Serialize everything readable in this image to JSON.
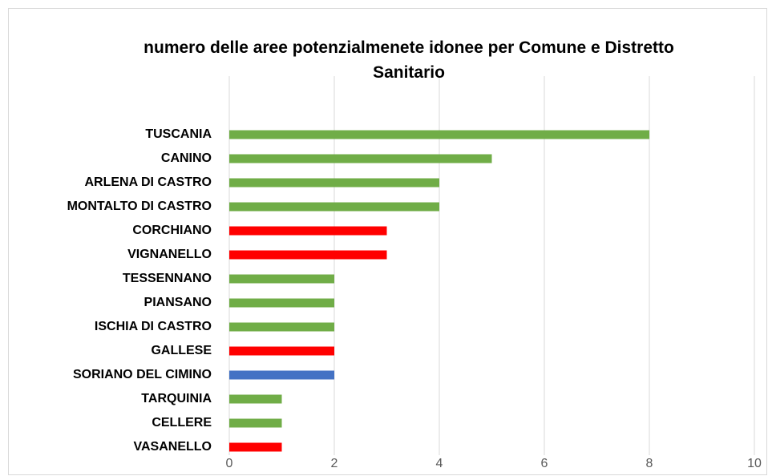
{
  "chart_data": {
    "type": "hbar",
    "title": "numero delle aree potenzialmenete idonee  per Comune e Distretto Sanitario",
    "categories": [
      "TUSCANIA",
      "CANINO",
      "ARLENA DI CASTRO",
      "MONTALTO DI CASTRO",
      "CORCHIANO",
      "VIGNANELLO",
      "TESSENNANO",
      "PIANSANO",
      "ISCHIA DI CASTRO",
      "GALLESE",
      "SORIANO DEL CIMINO",
      "TARQUINIA",
      "CELLERE",
      "VASANELLO"
    ],
    "values": [
      8,
      5,
      4,
      4,
      3,
      3,
      2,
      2,
      2,
      2,
      2,
      1,
      1,
      1
    ],
    "colors": [
      "#70ad47",
      "#70ad47",
      "#70ad47",
      "#70ad47",
      "#ff0000",
      "#ff0000",
      "#70ad47",
      "#70ad47",
      "#70ad47",
      "#ff0000",
      "#4472c4",
      "#70ad47",
      "#70ad47",
      "#ff0000"
    ],
    "xlim": [
      0,
      10
    ],
    "xticks": [
      0,
      2,
      4,
      6,
      8,
      10
    ],
    "grid": true
  }
}
